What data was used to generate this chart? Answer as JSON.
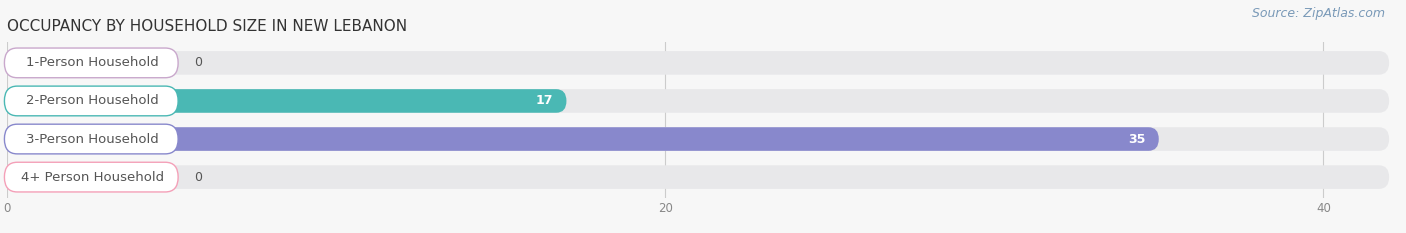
{
  "title": "OCCUPANCY BY HOUSEHOLD SIZE IN NEW LEBANON",
  "source": "Source: ZipAtlas.com",
  "categories": [
    "1-Person Household",
    "2-Person Household",
    "3-Person Household",
    "4+ Person Household"
  ],
  "values": [
    0,
    17,
    35,
    0
  ],
  "bar_colors": [
    "#c9a8cc",
    "#4ab8b4",
    "#8888cc",
    "#f4a0b8"
  ],
  "xlim_max": 42,
  "xticks": [
    0,
    20,
    40
  ],
  "title_fontsize": 11,
  "label_fontsize": 9.5,
  "value_fontsize": 9,
  "source_fontsize": 9,
  "bg_color": "#f7f7f7",
  "bar_bg_color": "#e8e8ea",
  "label_box_color": "#ffffff",
  "grid_color": "#cccccc",
  "text_color": "#555555",
  "source_color": "#7a9ab8"
}
